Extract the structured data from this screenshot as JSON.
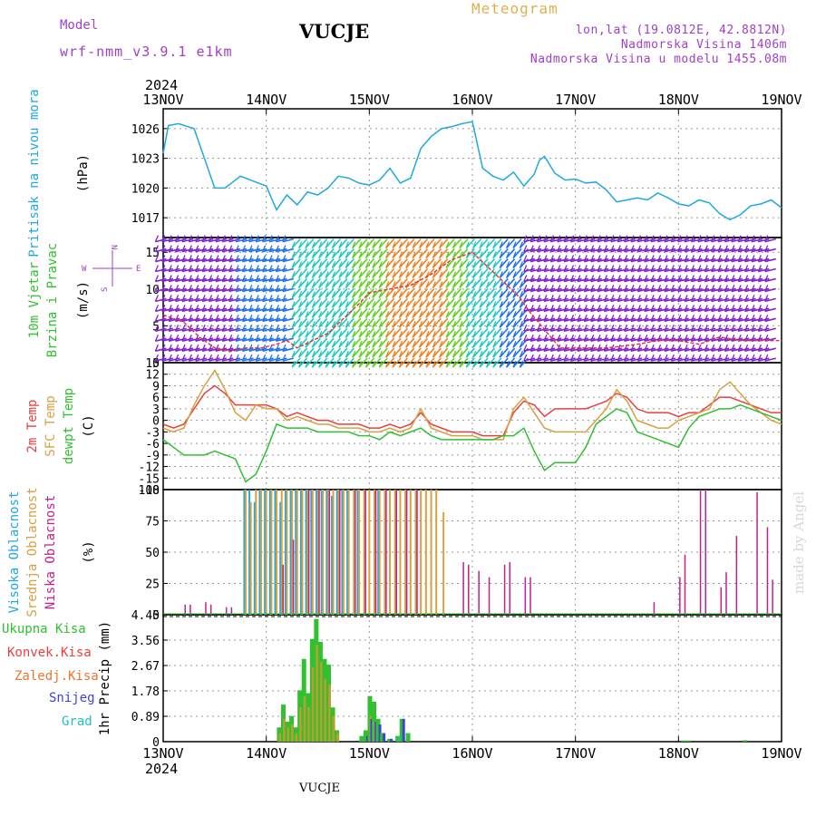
{
  "header": {
    "model_label": "Model",
    "model_name": "wrf-nmm_v3.9.1 e1km",
    "station": "VUCJE",
    "product": "Meteogram",
    "lonlat": "lon,lat (19.0812E, 42.8812N)",
    "altitude": "Nadmorska Visina 1406m",
    "altitude_model": "Nadmorska Visina u modelu 1455.08m"
  },
  "footer": {
    "station": "VUCJE",
    "credit": "made by Angel"
  },
  "time_axis": {
    "year": "2024",
    "ticks": [
      "13NOV",
      "14NOV",
      "15NOV",
      "16NOV",
      "17NOV",
      "18NOV",
      "19NOV"
    ]
  },
  "colors": {
    "pressure": "#20a8e0",
    "temp": "#e84040",
    "sfc_temp": "#d8a040",
    "dewpt": "#30c030",
    "cloud_high": "#20a8e0",
    "cloud_mid": "#d8a040",
    "cloud_low": "#c02090",
    "rain_total": "#30c030",
    "rain_conv": "#e84040",
    "rain_frozen": "#e87830",
    "snow": "#4040e0",
    "hail": "#20c0c0",
    "wind_speed": "#e83030"
  },
  "chart_data": [
    {
      "type": "line",
      "panel": "pressure",
      "ylabel_name": "Pritisak na nivou mora",
      "ylabel_unit": "(hPa)",
      "ylim": [
        1015,
        1028
      ],
      "yticks": [
        1017,
        1020,
        1023,
        1026
      ],
      "x_days": [
        0,
        0.05,
        0.15,
        0.3,
        0.4,
        0.5,
        0.6,
        0.75,
        0.85,
        1.0,
        1.1,
        1.2,
        1.3,
        1.4,
        1.5,
        1.6,
        1.7,
        1.8,
        1.9,
        2.0,
        2.1,
        2.2,
        2.3,
        2.4,
        2.5,
        2.6,
        2.7,
        2.8,
        2.9,
        3.0,
        3.1,
        3.2,
        3.3,
        3.4,
        3.5,
        3.6,
        3.65,
        3.7,
        3.8,
        3.9,
        4.0,
        4.1,
        4.2,
        4.3,
        4.4,
        4.5,
        4.6,
        4.7,
        4.8,
        4.9,
        5.0,
        5.1,
        5.2,
        5.3,
        5.4,
        5.5,
        5.6,
        5.7,
        5.8,
        5.9,
        6.0
      ],
      "series": [
        {
          "values": [
            1023.5,
            1026.3,
            1026.5,
            1026.0,
            1023.0,
            1020.0,
            1020.0,
            1021.2,
            1020.8,
            1020.2,
            1017.8,
            1019.3,
            1018.3,
            1019.6,
            1019.3,
            1020.0,
            1021.2,
            1021.0,
            1020.5,
            1020.3,
            1020.8,
            1022.0,
            1020.5,
            1021.0,
            1024.0,
            1025.2,
            1026.0,
            1026.2,
            1026.5,
            1026.7,
            1022.0,
            1021.2,
            1020.8,
            1021.6,
            1020.2,
            1021.4,
            1022.8,
            1023.2,
            1021.5,
            1020.8,
            1020.9,
            1020.5,
            1020.6,
            1019.8,
            1018.6,
            1018.8,
            1019.0,
            1018.8,
            1019.5,
            1019.0,
            1018.4,
            1018.2,
            1018.8,
            1018.5,
            1017.4,
            1016.8,
            1017.3,
            1018.2,
            1018.4,
            1018.8,
            1018.0
          ]
        }
      ]
    },
    {
      "type": "barbs",
      "panel": "wind",
      "ylabel_name": "10m Vjetar",
      "ylabel_name2": "Brzina i Pravac",
      "ylabel_unit": "(m/s)",
      "compass": {
        "n": "N",
        "s": "S",
        "w": "W",
        "e": "E"
      },
      "ylim": [
        0,
        17
      ],
      "yticks": [
        0,
        5,
        10,
        15
      ],
      "speed_x_days": [
        0,
        0.2,
        0.35,
        0.5,
        0.65,
        0.8,
        0.95,
        1.1,
        1.2,
        1.3,
        1.45,
        1.6,
        1.75,
        1.9,
        2.0,
        2.2,
        2.4,
        2.6,
        2.8,
        3.0,
        3.15,
        3.3,
        3.45,
        3.55,
        3.7,
        3.85,
        4.0,
        4.3,
        4.6,
        4.8,
        5.0,
        5.2,
        5.4,
        5.6,
        5.8,
        6.0
      ],
      "speed_values": [
        6.5,
        5.5,
        3.5,
        2.0,
        1.5,
        2.0,
        2.0,
        2.5,
        3.0,
        2.0,
        3.0,
        4.0,
        6.0,
        8.0,
        9.5,
        10.0,
        10.5,
        12.0,
        14.0,
        15.0,
        13.0,
        11.0,
        9.0,
        7.0,
        4.5,
        2.0,
        2.0,
        2.0,
        2.5,
        3.0,
        3.0,
        2.5,
        3.5,
        3.0,
        3.0,
        3.0
      ]
    },
    {
      "type": "line",
      "panel": "temperature",
      "ylabel_name": "2m Temp",
      "ylabel_name2": "SFC Temp",
      "ylabel_name3": "dewpt Temp",
      "ylabel_unit": "(C)",
      "ylim": [
        -18,
        15
      ],
      "yticks": [
        -18,
        -15,
        -12,
        -9,
        -6,
        -3,
        0,
        3,
        6,
        9,
        12,
        15
      ],
      "x_days": [
        0,
        0.1,
        0.2,
        0.3,
        0.4,
        0.5,
        0.6,
        0.7,
        0.8,
        0.9,
        1.0,
        1.1,
        1.2,
        1.3,
        1.4,
        1.5,
        1.6,
        1.7,
        1.8,
        1.9,
        2.0,
        2.1,
        2.2,
        2.3,
        2.4,
        2.5,
        2.6,
        2.7,
        2.8,
        2.9,
        3.0,
        3.1,
        3.2,
        3.3,
        3.4,
        3.5,
        3.6,
        3.7,
        3.8,
        3.9,
        4.0,
        4.1,
        4.2,
        4.3,
        4.4,
        4.5,
        4.6,
        4.7,
        4.8,
        4.9,
        5.0,
        5.1,
        5.2,
        5.3,
        5.4,
        5.5,
        5.6,
        5.7,
        5.8,
        5.9,
        6.0
      ],
      "series": [
        {
          "name": "2m Temp",
          "values": [
            -1,
            -2,
            -1,
            3,
            7,
            9,
            7,
            4,
            4,
            4,
            4,
            3,
            1,
            2,
            1,
            0,
            0,
            -1,
            -1,
            -1,
            -2,
            -2,
            -1,
            -2,
            -1,
            2,
            -1,
            -2,
            -3,
            -3,
            -3,
            -4,
            -4,
            -4,
            2,
            5,
            4,
            1,
            3,
            3,
            3,
            3,
            4,
            5,
            7,
            6,
            3,
            2,
            2,
            2,
            1,
            2,
            2,
            4,
            6,
            6,
            5,
            4,
            3,
            2,
            2
          ]
        },
        {
          "name": "SFC Temp",
          "values": [
            -2,
            -3,
            -2,
            4,
            9,
            13,
            8,
            2,
            0,
            4,
            3,
            3,
            0,
            1,
            0,
            -1,
            -1,
            -2,
            -2,
            -2,
            -3,
            -3,
            -2,
            -3,
            -2,
            3,
            -2,
            -3,
            -4,
            -4,
            -4,
            -5,
            -5,
            -5,
            3,
            6,
            2,
            -2,
            -3,
            -3,
            -3,
            -3,
            0,
            3,
            8,
            5,
            0,
            -1,
            -2,
            -2,
            0,
            1,
            2,
            3,
            8,
            10,
            7,
            4,
            2,
            0,
            -1
          ]
        },
        {
          "name": "dewpt Temp",
          "values": [
            -5,
            -7,
            -9,
            -9,
            -9,
            -8,
            -9,
            -10,
            -16,
            -14,
            -8,
            -1,
            -2,
            -2,
            -2,
            -3,
            -3,
            -3,
            -3,
            -4,
            -4,
            -5,
            -3,
            -4,
            -3,
            -2,
            -4,
            -5,
            -5,
            -5,
            -5,
            -5,
            -5,
            -4,
            -4,
            -2,
            -8,
            -13,
            -11,
            -11,
            -11,
            -7,
            -1,
            1,
            3,
            2,
            -3,
            -4,
            -5,
            -6,
            -7,
            -2,
            1,
            2,
            3,
            3,
            4,
            3,
            2,
            1,
            0
          ]
        }
      ]
    },
    {
      "type": "bar",
      "panel": "clouds",
      "ylabel_name": "Visoka Oblacnost",
      "ylabel_name2": "Srednja Oblacnost",
      "ylabel_name3": "Niska Oblacnost",
      "ylabel_unit": "(%)",
      "ylim": [
        0,
        100
      ],
      "yticks": [
        0,
        25,
        50,
        75,
        100
      ],
      "bars": [
        {
          "x": 0.2,
          "low": 8
        },
        {
          "x": 0.25,
          "low": 8
        },
        {
          "x": 0.4,
          "low": 10
        },
        {
          "x": 0.45,
          "low": 8
        },
        {
          "x": 0.6,
          "low": 6
        },
        {
          "x": 0.65,
          "low": 6
        },
        {
          "x": 0.8,
          "high": 100,
          "mid": 100,
          "low": 0
        },
        {
          "x": 0.85,
          "high": 100,
          "mid": 90
        },
        {
          "x": 0.9,
          "high": 90,
          "mid": 100
        },
        {
          "x": 0.95,
          "high": 100,
          "mid": 100
        },
        {
          "x": 1.0,
          "high": 100,
          "mid": 100
        },
        {
          "x": 1.05,
          "high": 100,
          "mid": 100
        },
        {
          "x": 1.1,
          "high": 100,
          "mid": 100
        },
        {
          "x": 1.15,
          "high": 90,
          "mid": 100,
          "low": 40
        },
        {
          "x": 1.2,
          "high": 100,
          "mid": 100
        },
        {
          "x": 1.25,
          "high": 100,
          "mid": 100,
          "low": 60
        },
        {
          "x": 1.3,
          "high": 100,
          "mid": 100
        },
        {
          "x": 1.35,
          "high": 100,
          "mid": 100
        },
        {
          "x": 1.4,
          "high": 100,
          "mid": 100,
          "low": 100
        },
        {
          "x": 1.45,
          "high": 100,
          "mid": 100
        },
        {
          "x": 1.5,
          "high": 100,
          "mid": 100,
          "low": 100
        },
        {
          "x": 1.55,
          "high": 100,
          "mid": 100
        },
        {
          "x": 1.6,
          "high": 100,
          "mid": 100,
          "low": 100
        },
        {
          "x": 1.65,
          "high": 95,
          "mid": 100
        },
        {
          "x": 1.7,
          "high": 100,
          "mid": 100,
          "low": 100
        },
        {
          "x": 1.75,
          "high": 100,
          "mid": 100
        },
        {
          "x": 1.8,
          "high": 100,
          "mid": 100
        },
        {
          "x": 1.85,
          "mid": 100,
          "low": 100
        },
        {
          "x": 1.9,
          "high": 100,
          "mid": 100
        },
        {
          "x": 1.95,
          "mid": 100,
          "low": 100
        },
        {
          "x": 2.0,
          "mid": 100
        },
        {
          "x": 2.05,
          "mid": 100,
          "low": 100
        },
        {
          "x": 2.1,
          "high": 100,
          "mid": 100
        },
        {
          "x": 2.15,
          "mid": 100,
          "low": 100
        },
        {
          "x": 2.2,
          "mid": 100
        },
        {
          "x": 2.25,
          "mid": 100,
          "low": 100
        },
        {
          "x": 2.3,
          "mid": 100
        },
        {
          "x": 2.35,
          "mid": 100,
          "low": 100
        },
        {
          "x": 2.4,
          "mid": 100
        },
        {
          "x": 2.45,
          "mid": 100,
          "low": 100
        },
        {
          "x": 2.5,
          "mid": 100
        },
        {
          "x": 2.55,
          "mid": 100
        },
        {
          "x": 2.6,
          "mid": 100
        },
        {
          "x": 2.65,
          "mid": 100
        },
        {
          "x": 2.72,
          "mid": 82
        },
        {
          "x": 2.9,
          "low": 42
        },
        {
          "x": 2.95,
          "low": 40
        },
        {
          "x": 3.05,
          "low": 35
        },
        {
          "x": 3.15,
          "low": 30
        },
        {
          "x": 3.3,
          "low": 40
        },
        {
          "x": 3.35,
          "low": 42
        },
        {
          "x": 3.5,
          "low": 30
        },
        {
          "x": 3.55,
          "low": 30
        },
        {
          "x": 4.75,
          "low": 10
        },
        {
          "x": 5.0,
          "low": 30
        },
        {
          "x": 5.05,
          "low": 48
        },
        {
          "x": 5.2,
          "low": 100
        },
        {
          "x": 5.25,
          "low": 100
        },
        {
          "x": 5.4,
          "low": 22
        },
        {
          "x": 5.45,
          "low": 34
        },
        {
          "x": 5.55,
          "low": 63
        },
        {
          "x": 5.75,
          "low": 98
        },
        {
          "x": 5.85,
          "low": 70
        },
        {
          "x": 5.9,
          "low": 28
        }
      ]
    },
    {
      "type": "bar",
      "panel": "precip",
      "ylabel_name": "1hr Precip (mm)",
      "legend": [
        "Ukupna Kisa",
        "Konvek.Kisa",
        "Zaledj.Kisa",
        "Snijeg",
        "Grad"
      ],
      "ylim": [
        0,
        4.45
      ],
      "yticks": [
        0,
        0.89,
        1.78,
        2.67,
        3.56,
        4.45
      ],
      "bars": [
        {
          "x": 1.13,
          "total": 0.5,
          "frozen": 0.3
        },
        {
          "x": 1.17,
          "total": 1.3,
          "frozen": 0.8
        },
        {
          "x": 1.21,
          "total": 0.7,
          "frozen": 0.5
        },
        {
          "x": 1.25,
          "total": 0.9,
          "frozen": 0.6
        },
        {
          "x": 1.29,
          "total": 0.5,
          "frozen": 0.3
        },
        {
          "x": 1.33,
          "total": 1.8,
          "frozen": 1.2
        },
        {
          "x": 1.37,
          "total": 2.9,
          "frozen": 1.6
        },
        {
          "x": 1.41,
          "total": 1.7,
          "frozen": 1.2
        },
        {
          "x": 1.45,
          "total": 3.6,
          "frozen": 2.6
        },
        {
          "x": 1.49,
          "total": 4.3,
          "frozen": 3.4
        },
        {
          "x": 1.53,
          "total": 3.5,
          "frozen": 2.8
        },
        {
          "x": 1.57,
          "total": 2.9,
          "frozen": 2.2
        },
        {
          "x": 1.61,
          "total": 2.7,
          "frozen": 2.0
        },
        {
          "x": 1.65,
          "total": 1.2,
          "frozen": 0.9
        },
        {
          "x": 1.69,
          "total": 0.4,
          "frozen": 0.3
        },
        {
          "x": 1.93,
          "total": 0.2
        },
        {
          "x": 1.97,
          "total": 0.4,
          "snow": 0.2
        },
        {
          "x": 2.01,
          "total": 1.6,
          "frozen": 0.9,
          "snow": 0.8
        },
        {
          "x": 2.05,
          "total": 1.4,
          "frozen": 0.7,
          "snow": 0.7
        },
        {
          "x": 2.09,
          "total": 0.8,
          "snow": 0.6
        },
        {
          "x": 2.13,
          "total": 0.3,
          "snow": 0.3
        },
        {
          "x": 2.2,
          "total": 0.1,
          "snow": 0.1
        },
        {
          "x": 2.28,
          "total": 0.2,
          "hail": 0.2
        },
        {
          "x": 2.32,
          "total": 0.8,
          "snow": 0.8
        },
        {
          "x": 2.38,
          "total": 0.3
        },
        {
          "x": 5.05,
          "total": 0.04
        },
        {
          "x": 5.1,
          "total": 0.04
        },
        {
          "x": 5.65,
          "total": 0.05
        }
      ]
    }
  ]
}
